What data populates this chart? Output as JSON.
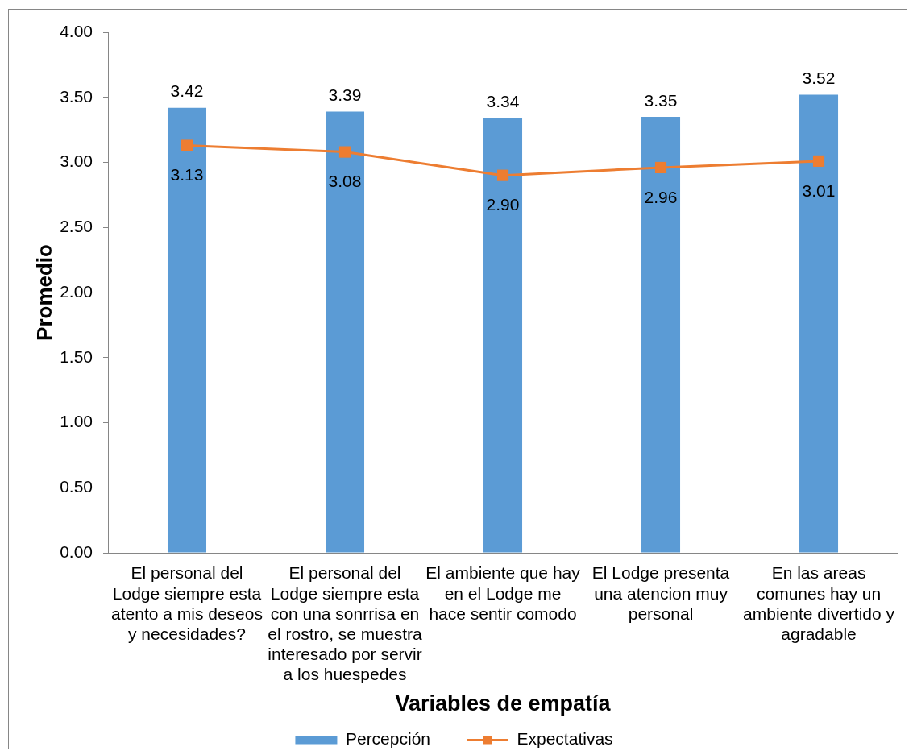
{
  "chart_data": {
    "type": "bar",
    "xlabel": "Variables de empatía",
    "ylabel": "Promedio",
    "categories": [
      "El personal del Lodge siempre esta atento a mis deseos y necesidades?",
      "El personal del Lodge siempre esta con una sonrrisa en el rostro, se muestra interesado por servir a los huespedes",
      "El ambiente que hay en el Lodge me hace sentir comodo",
      "El Lodge presenta una atencion muy personal",
      "En las areas comunes hay un ambiente divertido y agradable"
    ],
    "ylim": [
      0,
      4
    ],
    "yticks": [
      {
        "value": 0,
        "label": "0.00"
      },
      {
        "value": 0.5,
        "label": "0.50"
      },
      {
        "value": 1,
        "label": "1.00"
      },
      {
        "value": 1.5,
        "label": "1.50"
      },
      {
        "value": 2,
        "label": "2.00"
      },
      {
        "value": 2.5,
        "label": "2.50"
      },
      {
        "value": 3,
        "label": "3.00"
      },
      {
        "value": 3.5,
        "label": "3.50"
      },
      {
        "value": 4,
        "label": "4.00"
      }
    ],
    "legend": "bottom",
    "series": [
      {
        "name": "Percepción",
        "color": "#5b9bd5",
        "values": [
          3.42,
          3.39,
          3.34,
          3.35,
          3.52
        ],
        "value_labels": [
          "3.42",
          "3.39",
          "3.34",
          "3.35",
          "3.52"
        ]
      },
      {
        "name": "Expectativas",
        "type": "line",
        "color": "#ed7d31",
        "marker": "square",
        "values": [
          3.13,
          3.08,
          2.9,
          2.96,
          3.01
        ],
        "value_labels": [
          "3.13",
          "3.08",
          "2.90",
          "2.96",
          "3.01"
        ]
      }
    ]
  }
}
